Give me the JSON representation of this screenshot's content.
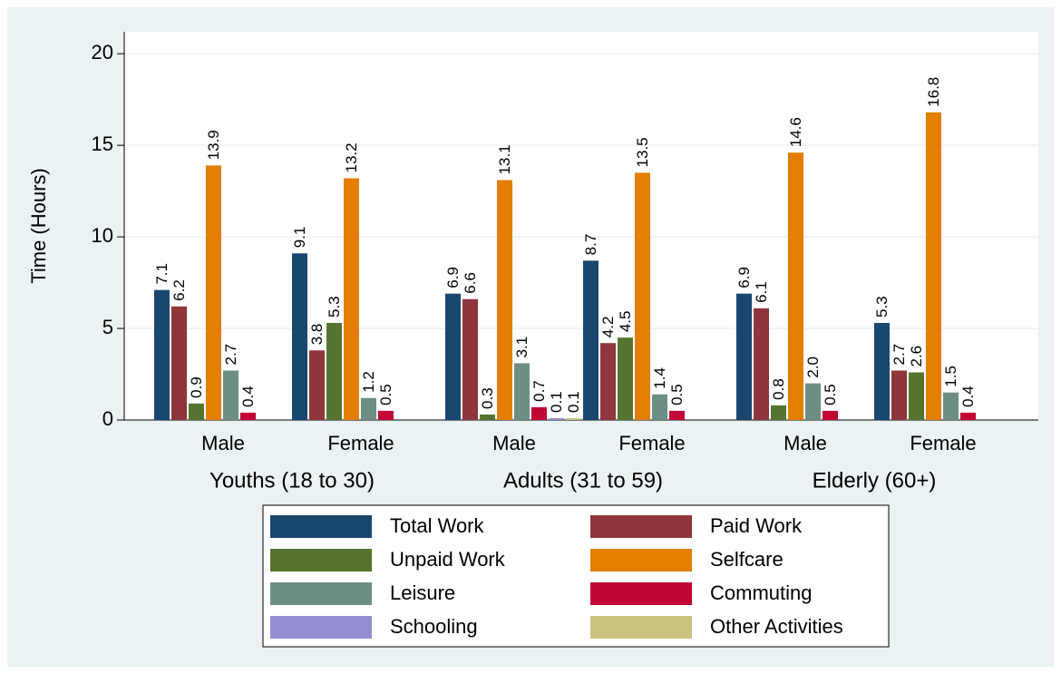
{
  "chart_data": {
    "type": "bar",
    "y_label": "Time (Hours)",
    "categories": [
      "Male",
      "Female",
      "Male",
      "Female",
      "Male",
      "Female"
    ],
    "groups": [
      "Youths (18 to 30)",
      "Adults (31 to 59)",
      "Elderly (60+)"
    ],
    "ylim": [
      0,
      21.2
    ],
    "yticks": [
      0,
      5,
      10,
      15,
      20
    ],
    "grid": true,
    "legend": "bottom",
    "series": [
      {
        "name": "Total Work",
        "color": "#1a476f",
        "values": [
          7.1,
          9.1,
          6.9,
          8.7,
          6.9,
          5.3
        ]
      },
      {
        "name": "Paid Work",
        "color": "#90353b",
        "values": [
          6.2,
          3.8,
          6.6,
          4.2,
          6.1,
          2.7
        ]
      },
      {
        "name": "Unpaid Work",
        "color": "#55752f",
        "values": [
          0.9,
          5.3,
          0.3,
          4.5,
          0.8,
          2.6
        ]
      },
      {
        "name": "Selfcare",
        "color": "#e37e00",
        "values": [
          13.9,
          13.2,
          13.1,
          13.5,
          14.6,
          16.8
        ]
      },
      {
        "name": "Leisure",
        "color": "#6e8e84",
        "values": [
          2.7,
          1.2,
          3.1,
          1.4,
          2,
          1.5
        ],
        "value_labels": [
          "2.7",
          "1.2",
          "3.1",
          "1.4",
          "2.0",
          "1.5"
        ]
      },
      {
        "name": "Commuting",
        "color": "#c10534",
        "values": [
          0.4,
          0.5,
          0.7,
          0.5,
          0.5,
          0.4
        ]
      },
      {
        "name": "Schooling",
        "color": "#938dd2",
        "values": [
          null,
          null,
          0.1,
          null,
          null,
          null
        ]
      },
      {
        "name": "Other Activities",
        "color": "#cac27e",
        "values": [
          null,
          null,
          0.1,
          null,
          null,
          null
        ]
      }
    ]
  }
}
